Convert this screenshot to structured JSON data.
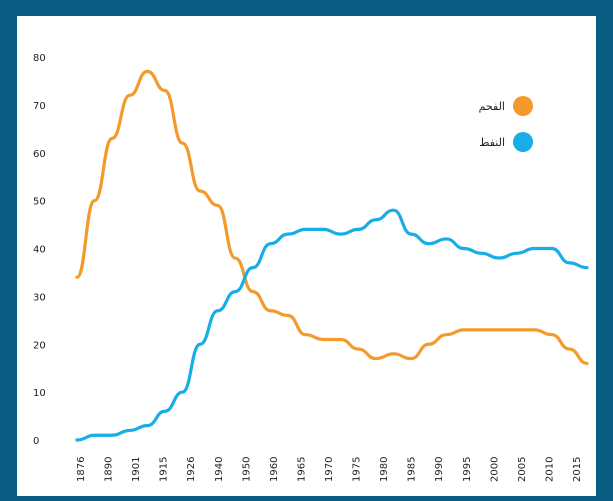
{
  "chart_data": {
    "type": "line",
    "title": "",
    "xlabel": "",
    "ylabel": "",
    "ylim": [
      0,
      80
    ],
    "y_ticks": [
      "0",
      "10",
      "20",
      "30",
      "40",
      "50",
      "60",
      "70",
      "80"
    ],
    "x_tick_labels": [
      "1876",
      "1890",
      "1901",
      "1915",
      "1926",
      "1940",
      "1950",
      "1960",
      "1965",
      "1970",
      "1975",
      "1980",
      "1985",
      "1990",
      "1995",
      "2000",
      "2005",
      "2010",
      "2015"
    ],
    "grid": false,
    "legend_position": "top-right",
    "series": [
      {
        "name": "الفحم",
        "color": "#f39a2b",
        "values": [
          34,
          50,
          63,
          72,
          77,
          73,
          62,
          52,
          49,
          38,
          31,
          27,
          26,
          22,
          21,
          21,
          19,
          17,
          18,
          17,
          20,
          22,
          23,
          23,
          23,
          23,
          23,
          22,
          19,
          16
        ]
      },
      {
        "name": "النفط",
        "color": "#17aee8",
        "values": [
          0,
          1,
          1,
          2,
          3,
          6,
          10,
          20,
          27,
          31,
          36,
          41,
          43,
          44,
          44,
          43,
          44,
          46,
          48,
          43,
          41,
          42,
          40,
          39,
          38,
          39,
          40,
          40,
          37,
          36
        ]
      }
    ]
  }
}
